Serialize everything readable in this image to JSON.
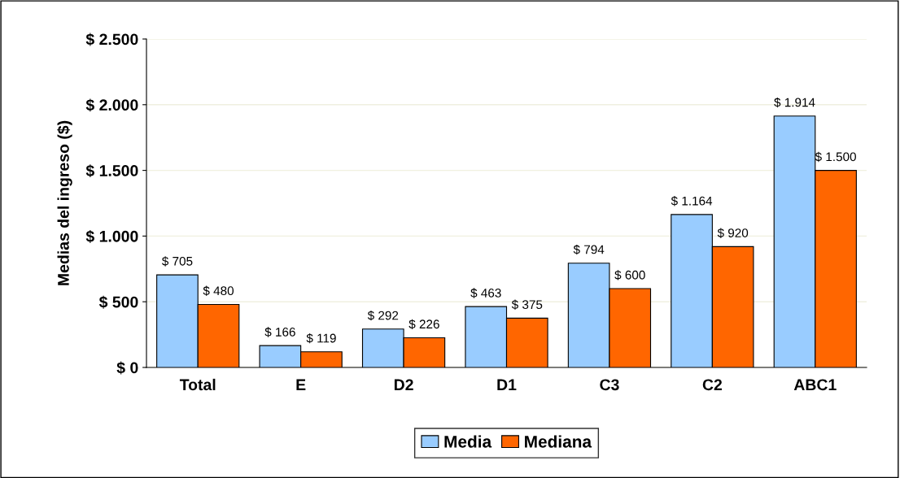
{
  "chart_data": {
    "type": "bar",
    "ylabel": "Medias del ingreso ($)",
    "categories": [
      "Total",
      "E",
      "D2",
      "D1",
      "C3",
      "C2",
      "ABC1"
    ],
    "series": [
      {
        "name": "Media",
        "color": "#99ccff",
        "values": [
          705,
          166,
          292,
          463,
          794,
          1164,
          1914
        ],
        "value_labels": [
          "$ 705",
          "$ 166",
          "$ 292",
          "$ 463",
          "$ 794",
          "$ 1.164",
          "$ 1.914"
        ]
      },
      {
        "name": "Mediana",
        "color": "#ff6600",
        "values": [
          480,
          119,
          226,
          375,
          600,
          920,
          1500
        ],
        "value_labels": [
          "$ 480",
          "$ 119",
          "$ 226",
          "$ 375",
          "$ 600",
          "$ 920",
          "$ 1.500"
        ]
      }
    ],
    "ylim": [
      0,
      2500
    ],
    "yticks": [
      {
        "value": 0,
        "label": "$ 0"
      },
      {
        "value": 500,
        "label": "$ 500"
      },
      {
        "value": 1000,
        "label": "$ 1.000"
      },
      {
        "value": 1500,
        "label": "$ 1.500"
      },
      {
        "value": 2000,
        "label": "$ 2.000"
      },
      {
        "value": 2500,
        "label": "$ 2.500"
      }
    ],
    "grid": "y",
    "legend": "bottom"
  }
}
